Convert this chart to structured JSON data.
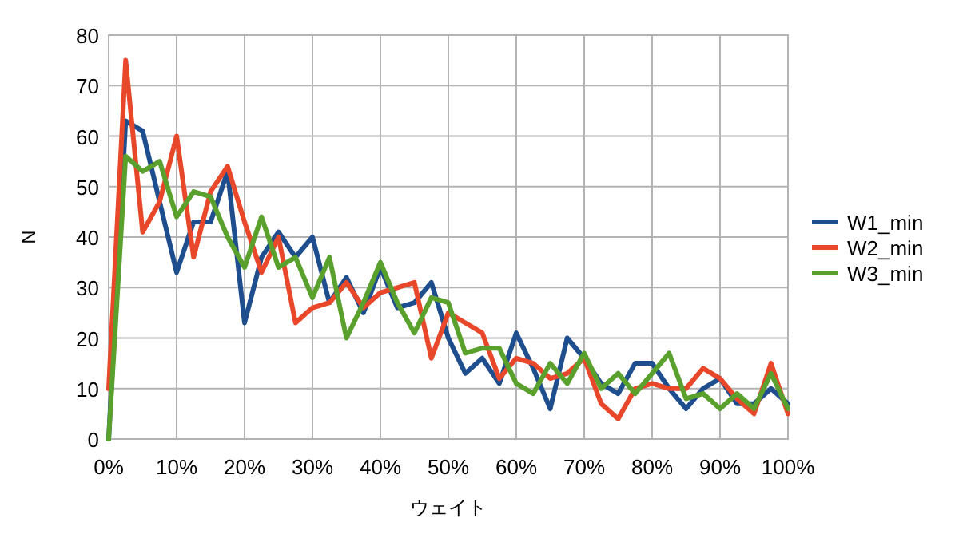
{
  "chart_data": {
    "type": "line",
    "xlabel": "ウェイト",
    "ylabel": "N",
    "x": [
      0,
      2.5,
      5,
      7.5,
      10,
      12.5,
      15,
      17.5,
      20,
      22.5,
      25,
      27.5,
      30,
      32.5,
      35,
      37.5,
      40,
      42.5,
      45,
      47.5,
      50,
      52.5,
      55,
      57.5,
      60,
      62.5,
      65,
      67.5,
      70,
      72.5,
      75,
      77.5,
      80,
      82.5,
      85,
      87.5,
      90,
      92.5,
      95,
      97.5,
      100
    ],
    "series": [
      {
        "name": "W1_min",
        "color": "#1f4e8f",
        "values": [
          0,
          63,
          61,
          47,
          33,
          43,
          43,
          53,
          23,
          36,
          41,
          36,
          40,
          27,
          32,
          25,
          34,
          26,
          27,
          31,
          20,
          13,
          16,
          11,
          21,
          14,
          6,
          20,
          16,
          11,
          9,
          15,
          15,
          10,
          6,
          10,
          12,
          7,
          7,
          10,
          7
        ]
      },
      {
        "name": "W2_min",
        "color": "#e8472a",
        "values": [
          10,
          75,
          41,
          47,
          60,
          36,
          49,
          54,
          43,
          33,
          40,
          23,
          26,
          27,
          31,
          26,
          29,
          30,
          31,
          16,
          25,
          23,
          21,
          12,
          16,
          15,
          12,
          13,
          16,
          7,
          4,
          10,
          11,
          10,
          10,
          14,
          12,
          8,
          5,
          15,
          5
        ]
      },
      {
        "name": "W3_min",
        "color": "#5aa02c",
        "values": [
          0,
          56,
          53,
          55,
          44,
          49,
          48,
          40,
          34,
          44,
          34,
          36,
          28,
          36,
          20,
          27,
          35,
          27,
          21,
          28,
          27,
          17,
          18,
          18,
          11,
          9,
          15,
          11,
          17,
          10,
          13,
          9,
          13,
          17,
          8,
          9,
          6,
          9,
          6,
          13,
          6
        ]
      }
    ],
    "xlim": [
      0,
      100
    ],
    "xticks": [
      {
        "value": 0,
        "label": "0%"
      },
      {
        "value": 10,
        "label": "10%"
      },
      {
        "value": 20,
        "label": "20%"
      },
      {
        "value": 30,
        "label": "30%"
      },
      {
        "value": 40,
        "label": "40%"
      },
      {
        "value": 50,
        "label": "50%"
      },
      {
        "value": 60,
        "label": "60%"
      },
      {
        "value": 70,
        "label": "70%"
      },
      {
        "value": 80,
        "label": "80%"
      },
      {
        "value": 90,
        "label": "90%"
      },
      {
        "value": 100,
        "label": "100%"
      }
    ],
    "ylim": [
      0,
      80
    ],
    "yticks": [
      0,
      10,
      20,
      30,
      40,
      50,
      60,
      70,
      80
    ],
    "grid": true,
    "legend": "right",
    "marker": "none",
    "line_style": "solid"
  }
}
